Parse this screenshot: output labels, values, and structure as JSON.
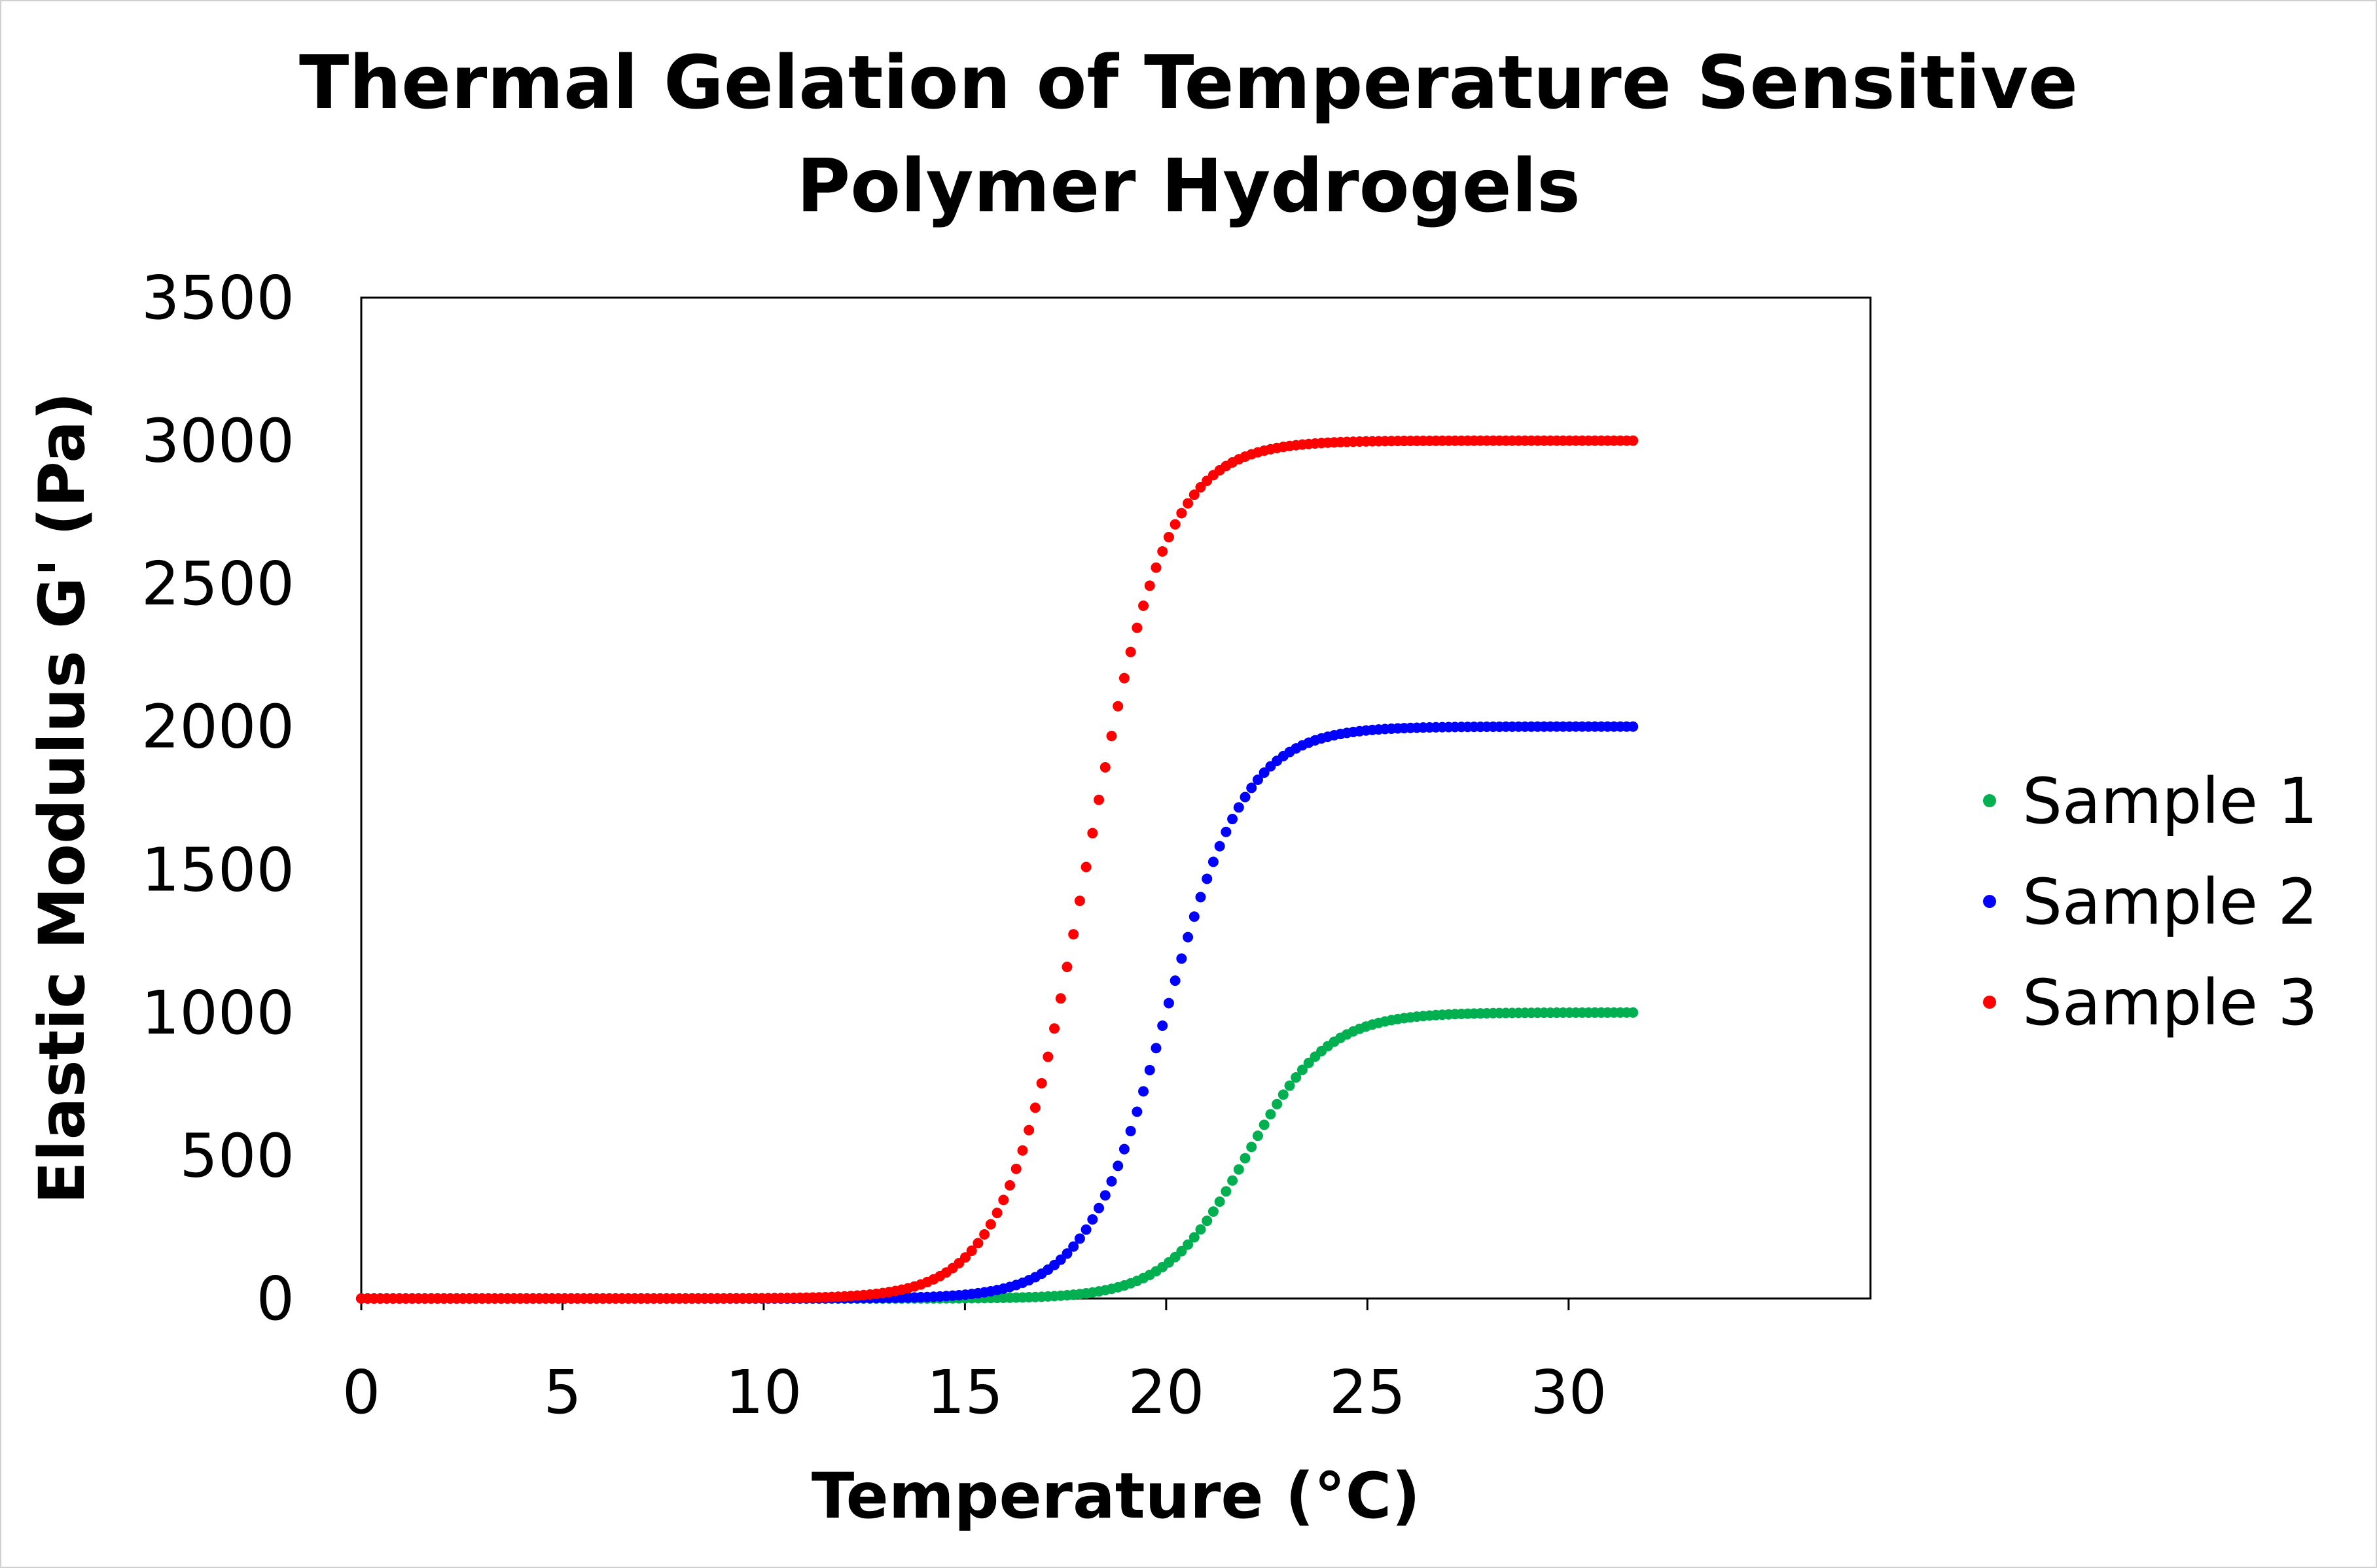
{
  "chart_data": {
    "type": "scatter",
    "title": [
      "Thermal Gelation of Temperature Sensitive",
      "Polymer Hydrogels"
    ],
    "xlabel": "Temperature (°C)",
    "ylabel": "Elastic Modulus G' (Pa)",
    "xlim": [
      0,
      37.5
    ],
    "ylim": [
      0,
      3500
    ],
    "xticks": [
      0,
      5,
      10,
      15,
      20,
      25,
      30
    ],
    "yticks": [
      0,
      500,
      1000,
      1500,
      2000,
      2500,
      3000,
      3500
    ],
    "x_range": [
      0,
      31.6
    ],
    "point_count": 201,
    "legend_position": "right",
    "grid": false,
    "series": [
      {
        "name": "Sample 1",
        "color": "#00b050",
        "plateau": 1000,
        "midpoint": 22,
        "slope": 1.0
      },
      {
        "name": "Sample 2",
        "color": "#0000ff",
        "plateau": 2000,
        "midpoint": 20,
        "slope": 1.0
      },
      {
        "name": "Sample 3",
        "color": "#ff0000",
        "plateau": 3000,
        "midpoint": 18,
        "slope": 1.0
      }
    ]
  }
}
